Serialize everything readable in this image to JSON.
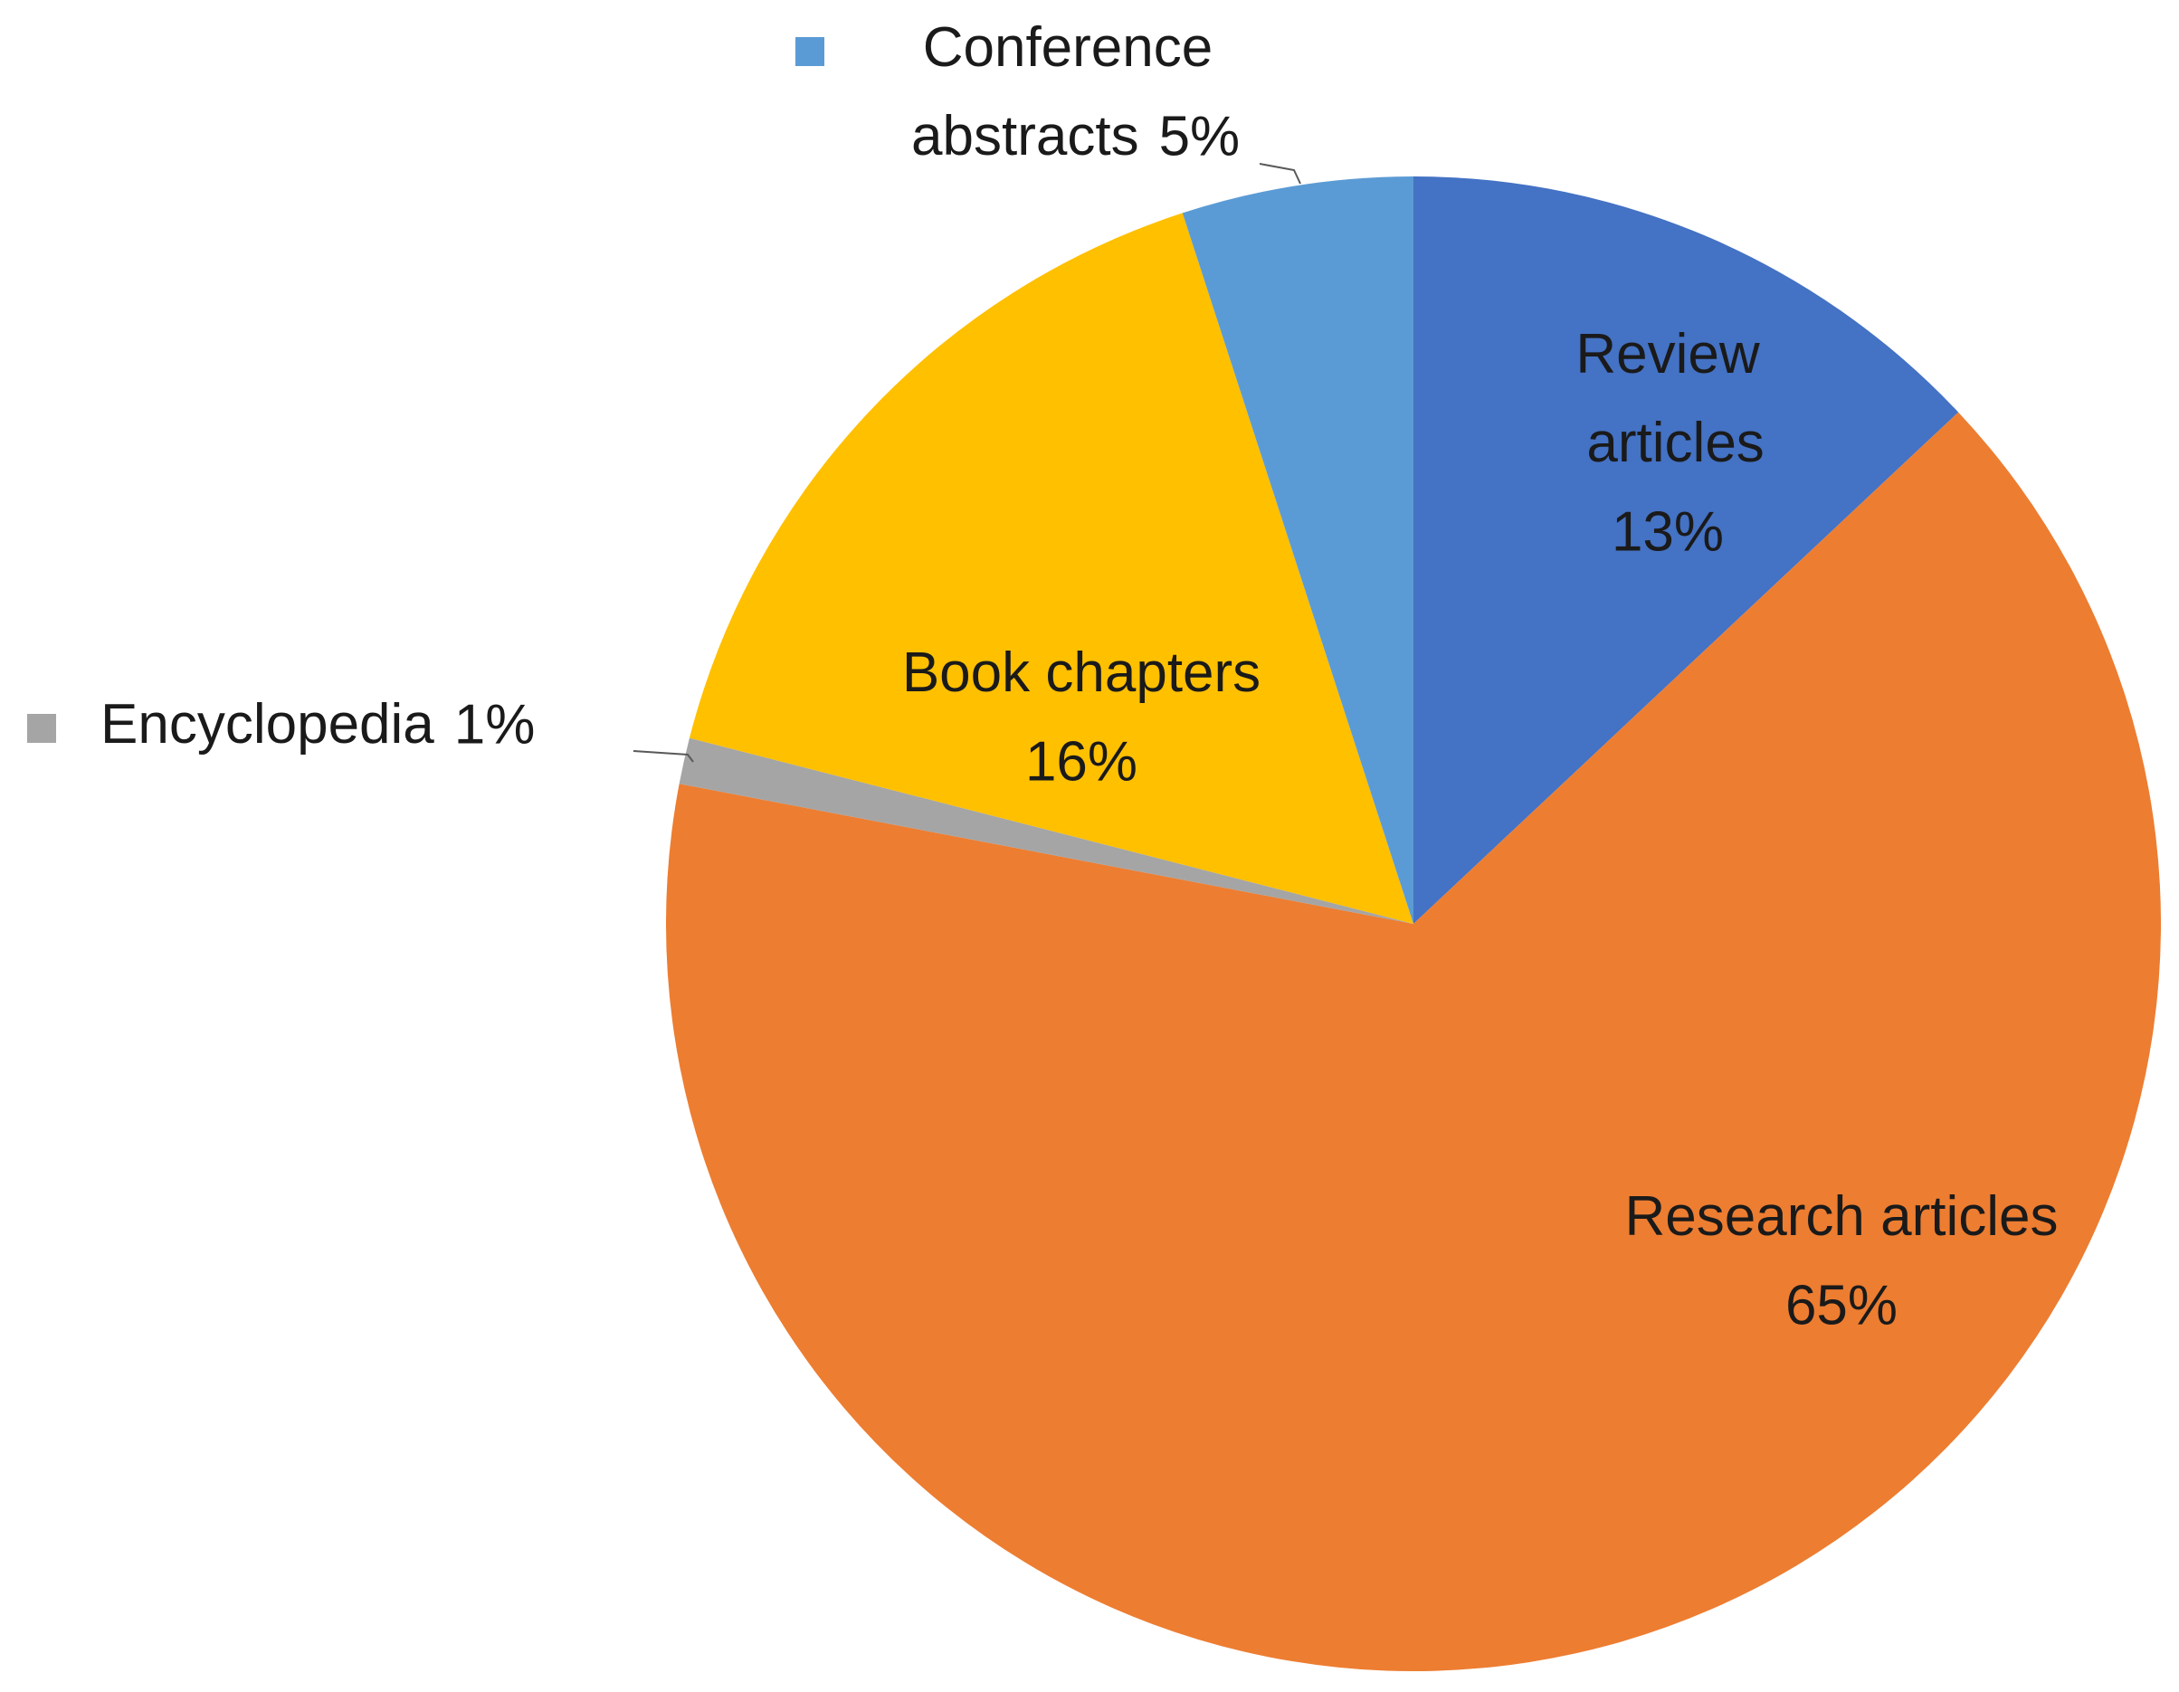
{
  "chart_data": {
    "type": "pie",
    "categories": [
      "Review articles",
      "Research articles",
      "Encyclopedia",
      "Book chapters",
      "Conference abstracts"
    ],
    "values": [
      13,
      65,
      1,
      16,
      5
    ],
    "value_labels": [
      "13%",
      "65%",
      "1%",
      "16%",
      "5%"
    ],
    "colors": [
      "#4472c4",
      "#ed7d31",
      "#a5a5a5",
      "#ffc000",
      "#5b9bd5"
    ]
  }
}
